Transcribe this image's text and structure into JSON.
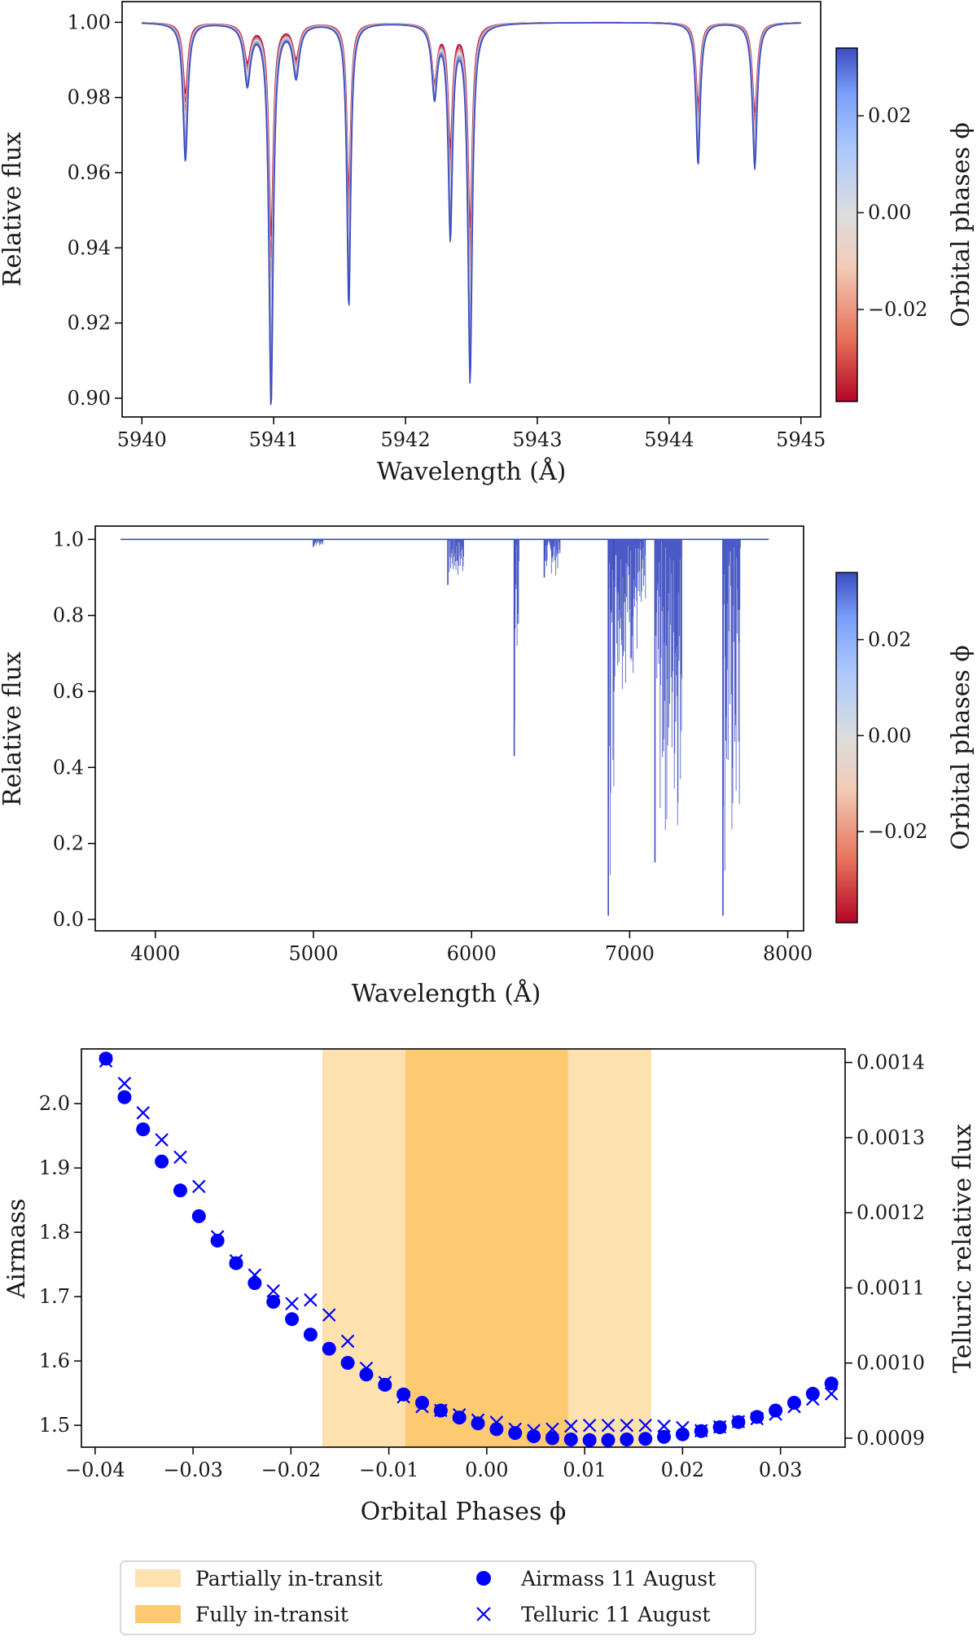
{
  "chart_data": [
    {
      "type": "line",
      "xlabel": "Wavelength (Å)",
      "ylabel": "Relative flux",
      "xlim": [
        5939.85,
        5945.15
      ],
      "ylim": [
        0.895,
        1.0055
      ],
      "xticks": [
        5940,
        5941,
        5942,
        5943,
        5944,
        5945
      ],
      "yticks": [
        0.9,
        0.92,
        0.94,
        0.96,
        0.98,
        1.0
      ],
      "ytick_labels": [
        "0.90",
        "0.92",
        "0.94",
        "0.96",
        "0.98",
        "1.00"
      ],
      "colorbar": {
        "label": "Orbital phases ϕ",
        "range": [
          -0.039,
          0.034
        ],
        "ticks": [
          -0.02,
          0.0,
          0.02
        ],
        "tick_labels": [
          "−0.02",
          "0.00",
          "0.02"
        ],
        "colormap": "coolwarm_r",
        "low_color": "#b40426",
        "mid_color": "#dddddd",
        "high_color": "#3b4cc0"
      },
      "absorption_lines": [
        {
          "center": 5940.33,
          "min_blue": 0.963,
          "min_red": 0.981,
          "width": 0.022
        },
        {
          "center": 5940.8,
          "min_blue": 0.984,
          "min_red": 0.99,
          "width": 0.03
        },
        {
          "center": 5940.98,
          "min_blue": 0.898,
          "min_red": 0.943,
          "width": 0.02
        },
        {
          "center": 5941.17,
          "min_blue": 0.986,
          "min_red": 0.991,
          "width": 0.03
        },
        {
          "center": 5941.57,
          "min_blue": 0.924,
          "min_red": 0.955,
          "width": 0.018
        },
        {
          "center": 5942.22,
          "min_blue": 0.981,
          "min_red": 0.985,
          "width": 0.025
        },
        {
          "center": 5942.34,
          "min_blue": 0.944,
          "min_red": 0.968,
          "width": 0.02
        },
        {
          "center": 5942.49,
          "min_blue": 0.905,
          "min_red": 0.946,
          "width": 0.02
        },
        {
          "center": 5944.22,
          "min_blue": 0.962,
          "min_red": 0.978,
          "width": 0.02
        },
        {
          "center": 5944.65,
          "min_blue": 0.961,
          "min_red": 0.976,
          "width": 0.022
        }
      ]
    },
    {
      "type": "line",
      "xlabel": "Wavelength (Å)",
      "ylabel": "Relative flux",
      "xlim": [
        3620,
        8100
      ],
      "ylim": [
        -0.03,
        1.035
      ],
      "xticks": [
        4000,
        5000,
        6000,
        7000,
        8000
      ],
      "yticks": [
        0.0,
        0.2,
        0.4,
        0.6,
        0.8,
        1.0
      ],
      "ytick_labels": [
        "0.0",
        "0.2",
        "0.4",
        "0.6",
        "0.8",
        "1.0"
      ],
      "wavelength_range": [
        3780,
        7880
      ],
      "colorbar": {
        "label": "Orbital phases ϕ",
        "range": [
          -0.039,
          0.034
        ],
        "ticks": [
          -0.02,
          0.0,
          0.02
        ],
        "tick_labels": [
          "−0.02",
          "0.00",
          "0.02"
        ],
        "colormap": "coolwarm_r",
        "low_color": "#b40426",
        "mid_color": "#dddddd",
        "high_color": "#3b4cc0"
      },
      "telluric_bands": [
        {
          "start": 5000,
          "end": 5060,
          "min": 0.98
        },
        {
          "start": 5850,
          "end": 5950,
          "min": 0.88
        },
        {
          "start": 6270,
          "end": 6300,
          "min": 0.43
        },
        {
          "start": 6460,
          "end": 6560,
          "min": 0.9
        },
        {
          "start": 6865,
          "end": 6900,
          "min": 0.01
        },
        {
          "start": 6900,
          "end": 7100,
          "min": 0.6
        },
        {
          "start": 7160,
          "end": 7330,
          "min": 0.15
        },
        {
          "start": 7590,
          "end": 7700,
          "min": 0.01
        }
      ]
    },
    {
      "type": "scatter",
      "xlabel": "Orbital Phases ϕ",
      "ylabel": "Airmass",
      "y2label": "Telluric relative flux",
      "xlim": [
        -0.0414,
        0.0366
      ],
      "ylim": [
        1.466,
        2.085
      ],
      "y2lim": [
        0.000888,
        0.001418
      ],
      "xticks": [
        -0.04,
        -0.03,
        -0.02,
        -0.01,
        0.0,
        0.01,
        0.02,
        0.03
      ],
      "xtick_labels": [
        "−0.04",
        "−0.03",
        "−0.02",
        "−0.01",
        "0.00",
        "0.01",
        "0.02",
        "0.03"
      ],
      "yticks": [
        1.5,
        1.6,
        1.7,
        1.8,
        1.9,
        2.0
      ],
      "ytick_labels": [
        "1.5",
        "1.6",
        "1.7",
        "1.8",
        "1.9",
        "2.0"
      ],
      "y2ticks": [
        0.0009,
        0.001,
        0.0011,
        0.0012,
        0.0013,
        0.0014
      ],
      "y2tick_labels": [
        "0.0009",
        "0.0010",
        "0.0011",
        "0.0012",
        "0.0013",
        "0.0014"
      ],
      "shaded_regions": [
        {
          "name": "Partially in-transit",
          "start": -0.0168,
          "end": 0.0168,
          "color": "#fde2b0"
        },
        {
          "name": "Fully in-transit",
          "start": -0.0083,
          "end": 0.0083,
          "color": "#fdca72"
        }
      ],
      "series": [
        {
          "name": "Airmass 11 August",
          "marker": "circle",
          "color": "#0000ff",
          "x": [
            -0.0389,
            -0.037,
            -0.0351,
            -0.0332,
            -0.0313,
            -0.0294,
            -0.0275,
            -0.0256,
            -0.0237,
            -0.0218,
            -0.0199,
            -0.018,
            -0.0161,
            -0.0142,
            -0.0123,
            -0.0104,
            -0.0085,
            -0.0066,
            -0.0047,
            -0.0028,
            -0.0009,
            0.001,
            0.0029,
            0.0048,
            0.0067,
            0.0086,
            0.0105,
            0.0124,
            0.0143,
            0.0162,
            0.0181,
            0.02,
            0.0219,
            0.0238,
            0.0257,
            0.0276,
            0.0295,
            0.0314,
            0.0333,
            0.0352
          ],
          "y": [
            2.07,
            2.01,
            1.96,
            1.91,
            1.865,
            1.825,
            1.787,
            1.752,
            1.721,
            1.692,
            1.665,
            1.641,
            1.619,
            1.597,
            1.579,
            1.563,
            1.548,
            1.535,
            1.523,
            1.512,
            1.503,
            1.494,
            1.488,
            1.483,
            1.48,
            1.478,
            1.477,
            1.477,
            1.478,
            1.479,
            1.482,
            1.486,
            1.491,
            1.497,
            1.505,
            1.513,
            1.523,
            1.535,
            1.549,
            1.565
          ]
        },
        {
          "name": "Telluric 11 August",
          "marker": "x",
          "color": "#0000ff",
          "x": [
            -0.0389,
            -0.037,
            -0.0351,
            -0.0332,
            -0.0313,
            -0.0294,
            -0.0275,
            -0.0256,
            -0.0237,
            -0.0218,
            -0.0199,
            -0.018,
            -0.0161,
            -0.0142,
            -0.0123,
            -0.0104,
            -0.0085,
            -0.0066,
            -0.0047,
            -0.0028,
            -0.0009,
            0.001,
            0.0029,
            0.0048,
            0.0067,
            0.0086,
            0.0105,
            0.0124,
            0.0143,
            0.0162,
            0.0181,
            0.02,
            0.0219,
            0.0238,
            0.0257,
            0.0276,
            0.0295,
            0.0314,
            0.0333,
            0.0352
          ],
          "y": [
            0.001402,
            0.001372,
            0.001333,
            0.001297,
            0.001274,
            0.001235,
            0.001168,
            0.001136,
            0.001117,
            0.001096,
            0.001079,
            0.001084,
            0.001064,
            0.001029,
            0.000993,
            0.000974,
            0.000955,
            0.000942,
            0.000937,
            0.000931,
            0.000924,
            0.000921,
            0.000912,
            0.00091,
            0.000912,
            0.000916,
            0.000917,
            0.000917,
            0.000917,
            0.000917,
            0.000916,
            0.000914,
            0.00091,
            0.000915,
            0.000922,
            0.000926,
            0.000932,
            0.000942,
            0.000952,
            0.000959
          ]
        }
      ],
      "legend": {
        "placement": "below",
        "entries": [
          {
            "label": "Partially in-transit",
            "kind": "patch",
            "color": "#fde2b0"
          },
          {
            "label": "Fully in-transit",
            "kind": "patch",
            "color": "#fdca72"
          },
          {
            "label": "Airmass 11 August",
            "kind": "circle",
            "color": "#0000ff"
          },
          {
            "label": "Telluric 11 August",
            "kind": "x",
            "color": "#0000ff"
          }
        ]
      }
    }
  ]
}
